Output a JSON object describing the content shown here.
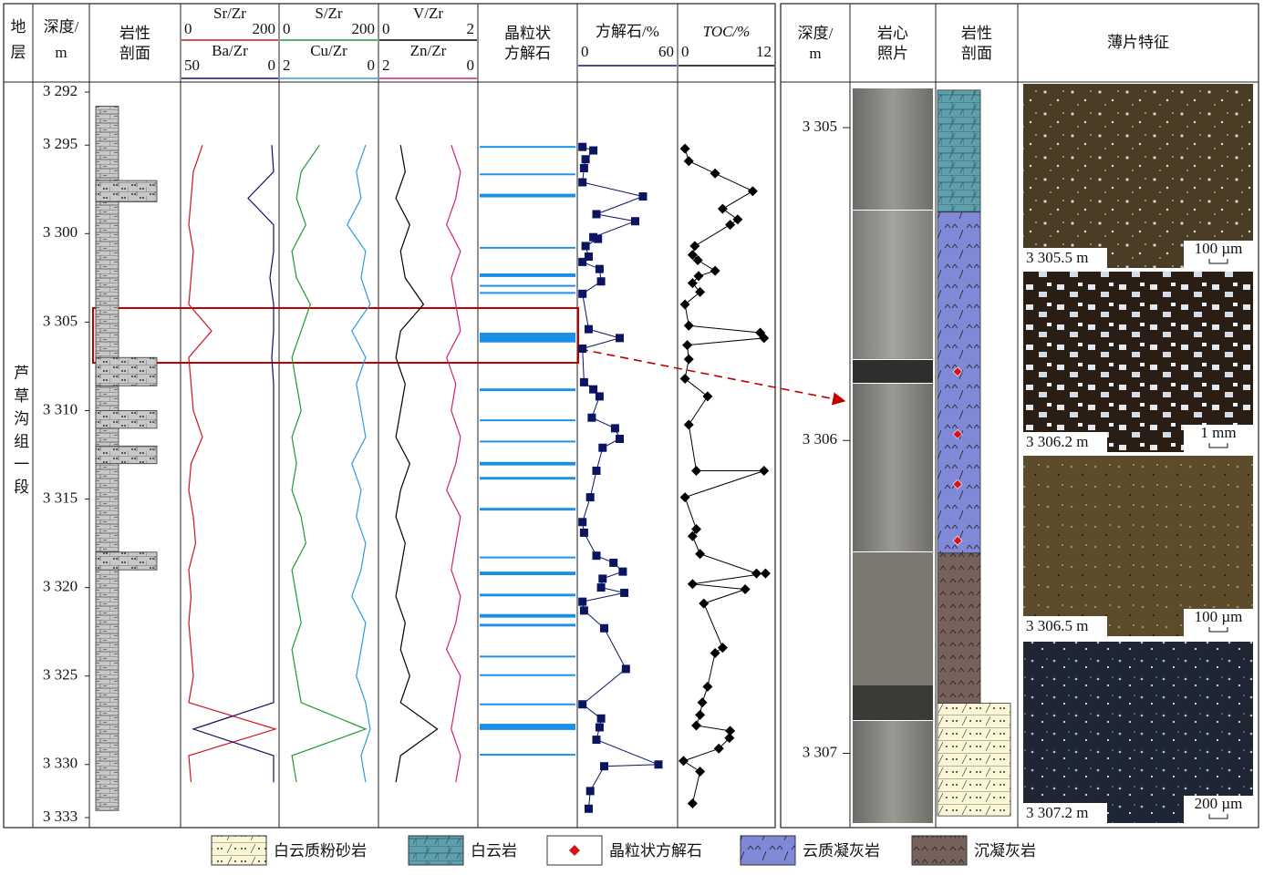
{
  "stratum": {
    "title": [
      "地",
      "层"
    ],
    "name": "芦草沟组一段"
  },
  "chart_data": [
    {
      "type": "depth-axis",
      "title": [
        "深度/",
        "m"
      ],
      "ylim": [
        3292,
        3333
      ],
      "yticks": [
        {
          "value": 3292,
          "label": "3 292"
        },
        {
          "value": 3295,
          "label": "3 295"
        },
        {
          "value": 3300,
          "label": "3 300"
        },
        {
          "value": 3305,
          "label": "3 305"
        },
        {
          "value": 3310,
          "label": "3 310"
        },
        {
          "value": 3315,
          "label": "3 315"
        },
        {
          "value": 3320,
          "label": "3 320"
        },
        {
          "value": 3325,
          "label": "3 325"
        },
        {
          "value": 3330,
          "label": "3 330"
        },
        {
          "value": 3333,
          "label": "3 333"
        }
      ]
    },
    {
      "type": "lithology",
      "title": [
        "岩性",
        "剖面"
      ],
      "color": "#c8c8c8",
      "column": [
        3292.8,
        3332.6
      ],
      "wide_beds": [
        [
          3297,
          3298.2
        ],
        [
          3307,
          3308.6
        ],
        [
          3310,
          3311
        ],
        [
          3312,
          3313
        ],
        [
          3318,
          3319
        ]
      ]
    },
    {
      "type": "line",
      "depths": [
        3295,
        3296.5,
        3298,
        3299.5,
        3301,
        3302.5,
        3304,
        3305.5,
        3307,
        3308.5,
        3310,
        3311.5,
        3313,
        3314.5,
        3316,
        3317.5,
        3319,
        3320.5,
        3322,
        3323.5,
        3325,
        3326.5,
        3328,
        3329.5,
        3331
      ],
      "series": [
        {
          "name": "Sr/Zr",
          "color": "#d0141c",
          "xlim": [
            0,
            200
          ],
          "xticks": [
            0,
            200
          ],
          "values": [
            40,
            20,
            15,
            10,
            20,
            15,
            10,
            60,
            10,
            15,
            20,
            40,
            15,
            10,
            20,
            25,
            10,
            15,
            10,
            15,
            20,
            10,
            200,
            10,
            15
          ]
        },
        {
          "name": "Ba/Zr",
          "color": "#0a1064",
          "xlim": [
            50,
            0
          ],
          "xticks": [
            50,
            0
          ],
          "values": [
            2,
            1,
            15,
            1,
            1,
            3,
            1,
            1,
            2,
            1,
            1,
            1,
            1,
            1,
            1,
            1,
            1,
            1,
            1,
            1,
            1,
            1,
            45,
            1,
            1
          ]
        }
      ]
    },
    {
      "type": "line",
      "depths": [
        3295,
        3296.5,
        3298,
        3299.5,
        3301,
        3302.5,
        3304,
        3305.5,
        3307,
        3308.5,
        3310,
        3311.5,
        3313,
        3314.5,
        3316,
        3317.5,
        3319,
        3320.5,
        3322,
        3323.5,
        3325,
        3326.5,
        3328,
        3329.5,
        3331
      ],
      "series": [
        {
          "name": "S/Zr",
          "color": "#1f9a2e",
          "xlim": [
            0,
            200
          ],
          "xticks": [
            0,
            200
          ],
          "values": [
            80,
            40,
            30,
            50,
            20,
            30,
            60,
            40,
            20,
            30,
            40,
            20,
            30,
            20,
            40,
            50,
            20,
            30,
            40,
            20,
            30,
            40,
            180,
            20,
            30
          ]
        },
        {
          "name": "Cu/Zr",
          "color": "#2a9be0",
          "xlim": [
            2,
            0
          ],
          "xticks": [
            2,
            0
          ],
          "values": [
            0.2,
            0.4,
            0.3,
            0.6,
            0.2,
            0.3,
            0.1,
            0.5,
            0.2,
            0.4,
            0.3,
            0.2,
            0.5,
            0.3,
            0.4,
            0.2,
            0.3,
            0.5,
            0.2,
            0.3,
            0.4,
            0.2,
            0.1,
            0.3,
            0.2
          ]
        }
      ]
    },
    {
      "type": "line",
      "depths": [
        3295,
        3296.5,
        3298,
        3299.5,
        3301,
        3302.5,
        3304,
        3305.5,
        3307,
        3308.5,
        3310,
        3311.5,
        3313,
        3314.5,
        3316,
        3317.5,
        3319,
        3320.5,
        3322,
        3323.5,
        3325,
        3326.5,
        3328,
        3329.5,
        3331
      ],
      "series": [
        {
          "name": "V/Zr",
          "color": "#000000",
          "xlim": [
            0,
            2
          ],
          "xticks": [
            0,
            2
          ],
          "values": [
            0.4,
            0.5,
            0.3,
            0.6,
            0.4,
            0.5,
            0.9,
            0.4,
            0.3,
            0.5,
            0.4,
            0.3,
            0.6,
            0.4,
            0.3,
            0.5,
            0.4,
            0.3,
            0.5,
            0.4,
            0.6,
            0.4,
            1.2,
            0.4,
            0.3
          ]
        },
        {
          "name": "Zn/Zr",
          "color": "#d0207a",
          "xlim": [
            2,
            0
          ],
          "xticks": [
            2,
            0
          ],
          "values": [
            0.5,
            0.3,
            0.4,
            0.6,
            0.3,
            0.5,
            0.4,
            0.3,
            0.6,
            0.4,
            0.5,
            0.3,
            0.4,
            0.6,
            0.3,
            0.4,
            0.5,
            0.3,
            0.4,
            0.6,
            0.3,
            0.4,
            0.5,
            0.3,
            0.4
          ]
        }
      ]
    },
    {
      "type": "band",
      "title": [
        "晶粒状",
        "方解石"
      ],
      "color": "#1a8fe6",
      "intervals": [
        [
          3295.05,
          3295.15
        ],
        [
          3296.6,
          3296.7
        ],
        [
          3297.75,
          3297.95
        ],
        [
          3300.75,
          3300.85
        ],
        [
          3302.25,
          3302.45
        ],
        [
          3302.9,
          3303.0
        ],
        [
          3303.3,
          3303.4
        ],
        [
          3305.6,
          3306.15
        ],
        [
          3308.75,
          3308.9
        ],
        [
          3310.5,
          3310.6
        ],
        [
          3311.7,
          3311.8
        ],
        [
          3312.9,
          3313.1
        ],
        [
          3313.75,
          3313.9
        ],
        [
          3315.5,
          3315.65
        ],
        [
          3318.25,
          3318.35
        ],
        [
          3319.1,
          3319.3
        ],
        [
          3320.35,
          3320.5
        ],
        [
          3321.5,
          3321.7
        ],
        [
          3322.05,
          3322.2
        ],
        [
          3323.85,
          3323.95
        ],
        [
          3324.9,
          3325.0
        ],
        [
          3326.55,
          3326.65
        ],
        [
          3327.7,
          3328.05
        ],
        [
          3329.4,
          3329.5
        ]
      ]
    },
    {
      "type": "scatter-line",
      "title": "方解石/%",
      "color": "#0b1460",
      "marker": "square",
      "xlim": [
        0,
        60
      ],
      "xticks": [
        0,
        60
      ],
      "depths": [
        3295.1,
        3295.3,
        3295.8,
        3296.3,
        3297.1,
        3297.9,
        3298.9,
        3299.3,
        3300.2,
        3300.3,
        3300.7,
        3301.3,
        3301.6,
        3302.0,
        3302.7,
        3303.4,
        3305.4,
        3305.9,
        3306.5,
        3308.4,
        3308.8,
        3309.2,
        3310.4,
        3311.0,
        3311.6,
        3312.1,
        3313.4,
        3314.9,
        3316.3,
        3316.9,
        3318.2,
        3318.6,
        3319.1,
        3319.5,
        3320.0,
        3320.3,
        3320.8,
        3321.3,
        3322.3,
        3324.6,
        3326.6,
        3327.4,
        3327.9,
        3328.6,
        3330.0,
        3330.1,
        3331.5,
        3332.5
      ],
      "values": [
        1,
        8,
        3,
        2,
        1,
        40,
        10,
        35,
        8,
        11,
        3,
        5,
        1,
        12,
        13,
        1,
        5,
        25,
        1,
        2,
        8,
        12,
        7,
        22,
        25,
        14,
        10,
        6,
        1,
        2,
        10,
        21,
        27,
        14,
        13,
        28,
        1,
        2,
        15,
        29,
        1,
        13,
        12,
        10,
        50,
        15,
        6,
        5
      ]
    },
    {
      "type": "scatter-line",
      "title": "TOC/%",
      "color": "#000000",
      "marker": "diamond",
      "xlim": [
        0,
        12
      ],
      "xticks": [
        0,
        12
      ],
      "depths": [
        3295.2,
        3295.9,
        3296.6,
        3297.6,
        3298.6,
        3299.2,
        3299.5,
        3300.7,
        3301.2,
        3301.5,
        3302.1,
        3302.4,
        3302.8,
        3303.3,
        3304.0,
        3305.2,
        3305.6,
        3305.9,
        3306.3,
        3307.1,
        3308.2,
        3309.2,
        3310.8,
        3313.4,
        3313.4,
        3314.9,
        3316.7,
        3317.1,
        3318.1,
        3319.2,
        3319.2,
        3319.8,
        3320.1,
        3320.9,
        3323.4,
        3323.7,
        3325.6,
        3326.5,
        3327.2,
        3327.8,
        3328.1,
        3328.5,
        3329.1,
        3329.8,
        3330.4,
        3332.2
      ],
      "values": [
        0.5,
        1,
        4.5,
        9.5,
        5.5,
        7.5,
        6.5,
        1.8,
        1.5,
        2.2,
        4.5,
        2.3,
        1.5,
        2.5,
        0.5,
        1,
        10.5,
        11,
        0.8,
        1,
        0.5,
        3.5,
        1,
        2,
        11,
        0.5,
        2,
        1.5,
        2.5,
        10,
        11.2,
        1.5,
        8.5,
        3,
        5.5,
        4.5,
        3.5,
        2.8,
        2.5,
        2,
        6.5,
        6.4,
        5,
        0.3,
        2.5,
        1.5
      ]
    },
    {
      "type": "core-log",
      "titles": {
        "depth": [
          "深度/",
          "m"
        ],
        "photo": [
          "岩心",
          "照片"
        ],
        "lithology": [
          "岩性",
          "剖面"
        ],
        "thin": "薄片特征"
      },
      "ylim": [
        3304.86,
        3307.22
      ],
      "yticks": [
        {
          "value": 3305,
          "label": "3 305"
        },
        {
          "value": 3306,
          "label": "3 306"
        },
        {
          "value": 3307,
          "label": "3 307"
        }
      ],
      "lithology": [
        {
          "top": 3304.88,
          "bottom": 3305.27,
          "rock": "白云岩"
        },
        {
          "top": 3305.27,
          "bottom": 3306.36,
          "rock": "云质凝灰岩"
        },
        {
          "top": 3306.36,
          "bottom": 3306.84,
          "rock": "沉凝灰岩"
        },
        {
          "top": 3306.84,
          "bottom": 3307.2,
          "rock": "白云质粉砂岩"
        }
      ],
      "calcite": [
        3305.78,
        3305.98,
        3306.14,
        3306.32
      ],
      "thin_sections": [
        {
          "depth": "3 305.5 m",
          "scale": "100 µm"
        },
        {
          "depth": "3 306.2 m",
          "scale": "1 mm"
        },
        {
          "depth": "3 306.5 m",
          "scale": "100 µm"
        },
        {
          "depth": "3 307.2 m",
          "scale": "200 µm"
        }
      ]
    }
  ],
  "legend": [
    {
      "name": "白云质粉砂岩",
      "color": "#fbf6d6"
    },
    {
      "name": "白云岩",
      "color": "#5ea1ae"
    },
    {
      "name": "晶粒状方解石",
      "color": "#d4141c"
    },
    {
      "name": "云质凝灰岩",
      "color": "#8088d8"
    },
    {
      "name": "沉凝灰岩",
      "color": "#76625a"
    }
  ]
}
